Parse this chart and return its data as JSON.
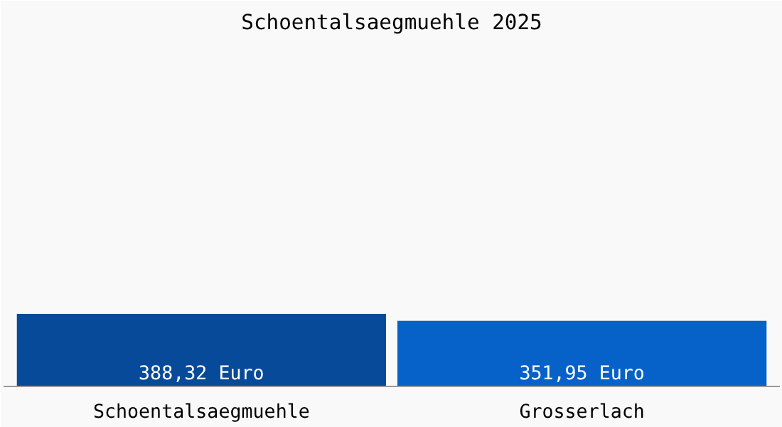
{
  "chart_data": {
    "type": "bar",
    "title": "Schoentalsaegmuehle 2025",
    "categories": [
      "Schoentalsaegmuehle",
      "Grosserlach"
    ],
    "values": [
      388.32,
      351.95
    ],
    "colors": [
      "#084a9a",
      "#0661c8"
    ],
    "value_labels": [
      "388,32 Euro",
      "351,95 Euro"
    ],
    "grid": false
  }
}
